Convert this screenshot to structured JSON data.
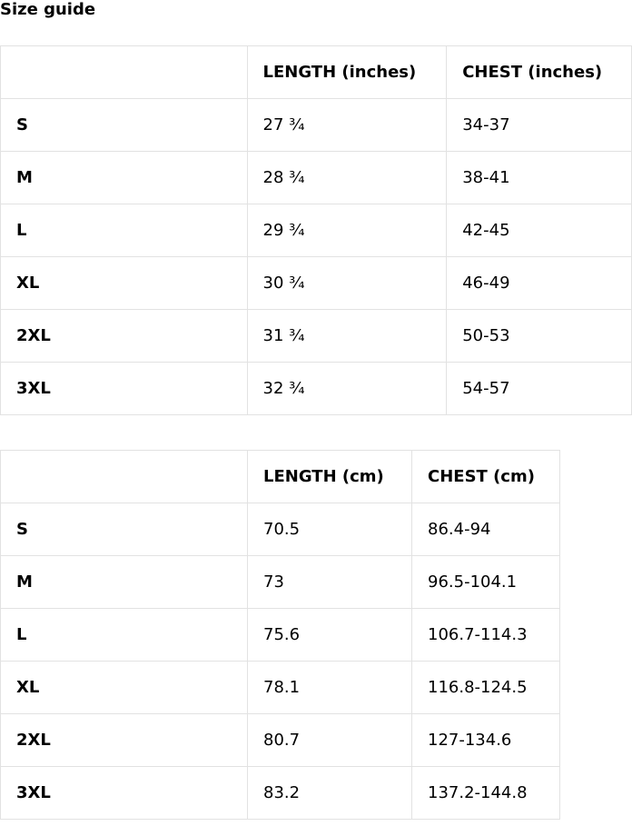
{
  "title": "Size guide",
  "tables": [
    {
      "headers": [
        "",
        "LENGTH (inches)",
        "CHEST (inches)"
      ],
      "rows": [
        [
          "S",
          "27 ¾",
          "34-37"
        ],
        [
          "M",
          "28 ¾",
          "38-41"
        ],
        [
          "L",
          "29 ¾",
          "42-45"
        ],
        [
          "XL",
          "30 ¾",
          "46-49"
        ],
        [
          "2XL",
          "31 ¾",
          "50-53"
        ],
        [
          "3XL",
          "32 ¾",
          "54-57"
        ]
      ]
    },
    {
      "headers": [
        "",
        "LENGTH (cm)",
        "CHEST (cm)"
      ],
      "rows": [
        [
          "S",
          "70.5",
          "86.4-94"
        ],
        [
          "M",
          "73",
          "96.5-104.1"
        ],
        [
          "L",
          "75.6",
          "106.7-114.3"
        ],
        [
          "XL",
          "78.1",
          "116.8-124.5"
        ],
        [
          "2XL",
          "80.7",
          "127-134.6"
        ],
        [
          "3XL",
          "83.2",
          "137.2-144.8"
        ]
      ]
    }
  ]
}
